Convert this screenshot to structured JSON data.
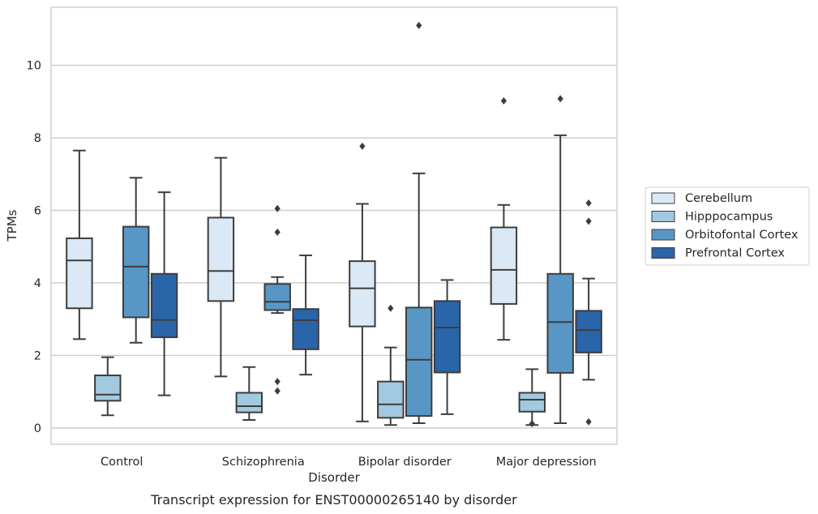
{
  "chart_data": {
    "type": "box",
    "title": "Transcript expression for ENST00000265140 by disorder",
    "xlabel": "Disorder",
    "ylabel": "TPMs",
    "ylim": [
      -0.45,
      11.6
    ],
    "yticks": [
      0,
      2,
      4,
      6,
      8,
      10
    ],
    "grid": "horizontal",
    "legend_position": "right",
    "categories": [
      "Control",
      "Schizophrenia",
      "Bipolar disorder",
      "Major depression"
    ],
    "series": [
      {
        "name": "Cerebellum",
        "color": "#dbe8f5",
        "boxes": [
          {
            "whisker_low": 2.45,
            "q1": 3.3,
            "median": 4.62,
            "q3": 5.23,
            "whisker_high": 7.65,
            "outliers": []
          },
          {
            "whisker_low": 1.42,
            "q1": 3.5,
            "median": 4.33,
            "q3": 5.8,
            "whisker_high": 7.45,
            "outliers": []
          },
          {
            "whisker_low": 0.18,
            "q1": 2.8,
            "median": 3.85,
            "q3": 4.6,
            "whisker_high": 6.18,
            "outliers": [
              7.77
            ]
          },
          {
            "whisker_low": 2.43,
            "q1": 3.42,
            "median": 4.36,
            "q3": 5.53,
            "whisker_high": 6.15,
            "outliers": [
              9.02
            ]
          }
        ]
      },
      {
        "name": "Hipppocampus",
        "color": "#a1c9e0",
        "boxes": [
          {
            "whisker_low": 0.35,
            "q1": 0.75,
            "median": 0.92,
            "q3": 1.45,
            "whisker_high": 1.95,
            "outliers": []
          },
          {
            "whisker_low": 0.22,
            "q1": 0.43,
            "median": 0.6,
            "q3": 0.97,
            "whisker_high": 1.68,
            "outliers": []
          },
          {
            "whisker_low": 0.08,
            "q1": 0.28,
            "median": 0.65,
            "q3": 1.28,
            "whisker_high": 2.22,
            "outliers": [
              3.3
            ]
          },
          {
            "whisker_low": 0.08,
            "q1": 0.45,
            "median": 0.78,
            "q3": 0.97,
            "whisker_high": 1.62,
            "outliers": [
              0.12
            ]
          }
        ]
      },
      {
        "name": "Orbitofontal Cortex",
        "color": "#5897c5",
        "boxes": [
          {
            "whisker_low": 2.35,
            "q1": 3.05,
            "median": 4.45,
            "q3": 5.55,
            "whisker_high": 6.9,
            "outliers": []
          },
          {
            "whisker_low": 3.17,
            "q1": 3.25,
            "median": 3.48,
            "q3": 3.97,
            "whisker_high": 4.16,
            "outliers": [
              6.05,
              5.4,
              1.28,
              1.02
            ]
          },
          {
            "whisker_low": 0.13,
            "q1": 0.33,
            "median": 1.88,
            "q3": 3.32,
            "whisker_high": 7.02,
            "outliers": [
              11.1
            ]
          },
          {
            "whisker_low": 0.13,
            "q1": 1.52,
            "median": 2.92,
            "q3": 4.25,
            "whisker_high": 8.07,
            "outliers": [
              9.08
            ]
          }
        ]
      },
      {
        "name": "Prefrontal Cortex",
        "color": "#2965a8",
        "boxes": [
          {
            "whisker_low": 0.9,
            "q1": 2.5,
            "median": 2.98,
            "q3": 4.25,
            "whisker_high": 6.5,
            "outliers": []
          },
          {
            "whisker_low": 1.47,
            "q1": 2.17,
            "median": 2.97,
            "q3": 3.28,
            "whisker_high": 4.76,
            "outliers": []
          },
          {
            "whisker_low": 0.38,
            "q1": 1.53,
            "median": 2.77,
            "q3": 3.5,
            "whisker_high": 4.08,
            "outliers": []
          },
          {
            "whisker_low": 1.33,
            "q1": 2.08,
            "median": 2.7,
            "q3": 3.23,
            "whisker_high": 4.12,
            "outliers": [
              6.2,
              5.7,
              0.17
            ]
          }
        ]
      }
    ]
  },
  "colors": {
    "line": "#3d3d3d",
    "grid": "#cccccc",
    "frame": "#cccccc",
    "text": "#262626"
  }
}
